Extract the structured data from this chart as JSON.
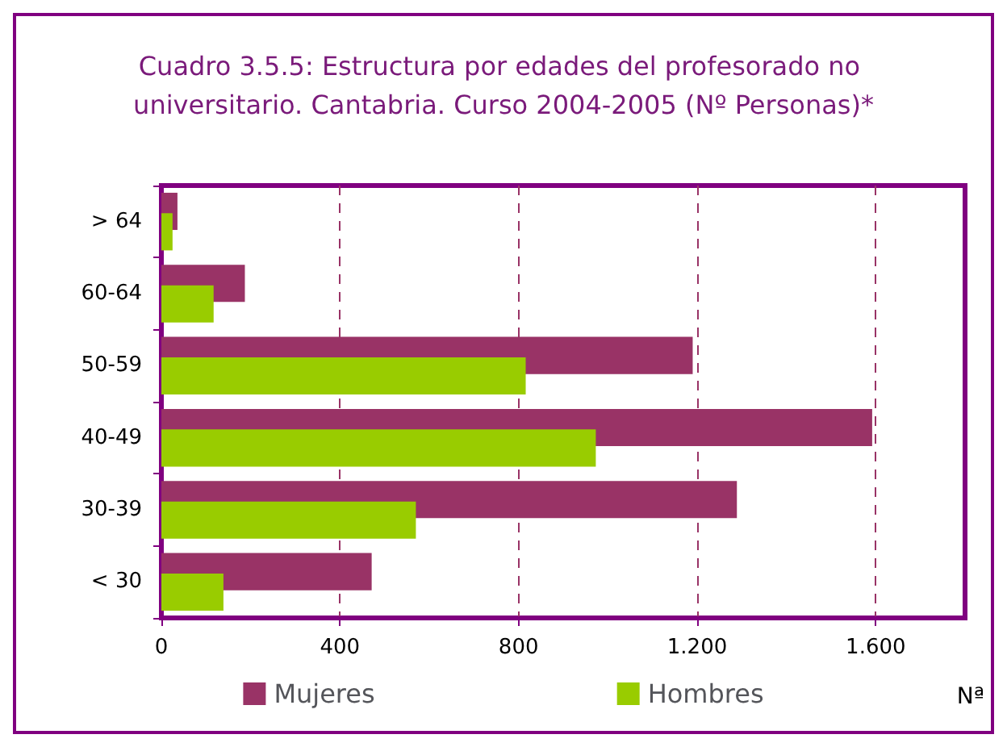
{
  "chart_data": {
    "type": "bar",
    "orientation": "horizontal",
    "title": "Cuadro 3.5.5: Estructura por edades del profesorado no universitario. Cantabria. Curso 2004-2005 (Nº Personas)*",
    "xlabel": "Nª",
    "categories": [
      "> 64",
      "60-64",
      "50-59",
      "40-49",
      "30-39",
      "< 30"
    ],
    "series": [
      {
        "name": "Mujeres",
        "color": "#993366",
        "values": [
          36,
          187,
          1190,
          1592,
          1289,
          471
        ]
      },
      {
        "name": "Hombres",
        "color": "#99cc00",
        "values": [
          25,
          117,
          816,
          973,
          570,
          139
        ]
      }
    ],
    "xlim": [
      0,
      1800
    ],
    "xticks": [
      0,
      400,
      800,
      {
        "value": 1200,
        "label": "1.200"
      },
      {
        "value": 1600,
        "label": "1.600"
      }
    ],
    "grid": "x",
    "legend": "bottom"
  }
}
